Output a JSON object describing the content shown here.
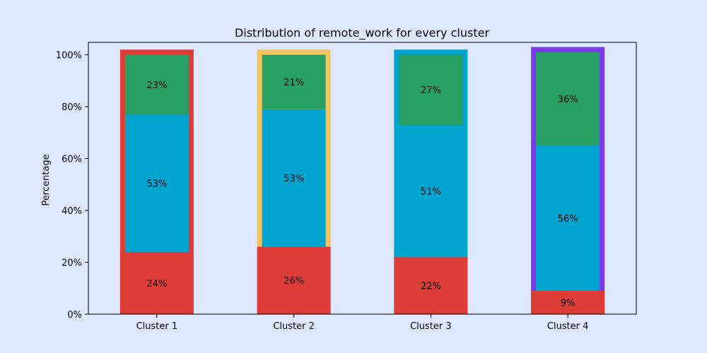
{
  "chart_data": {
    "type": "bar",
    "stacked": true,
    "title": "Distribution of remote_work for every cluster",
    "xlabel": "",
    "ylabel": "Percentage",
    "ylim": [
      0,
      100
    ],
    "yticks": [
      0,
      20,
      40,
      60,
      80,
      100
    ],
    "ytick_labels": [
      "0%",
      "20%",
      "40%",
      "60%",
      "80%",
      "100%"
    ],
    "categories": [
      "Cluster 1",
      "Cluster 2",
      "Cluster 3",
      "Cluster 4"
    ],
    "cluster_outline_colors": [
      "#dd3c37",
      "#f6c362",
      "#00a5cf",
      "#7a3ae7"
    ],
    "series": [
      {
        "color": "#dd3c37",
        "values": [
          24,
          26,
          22,
          9
        ],
        "labels": [
          "24%",
          "26%",
          "22%",
          "9%"
        ]
      },
      {
        "color": "#00a5cf",
        "values": [
          53,
          53,
          51,
          56
        ],
        "labels": [
          "53%",
          "53%",
          "51%",
          "56%"
        ]
      },
      {
        "color": "#27a064",
        "values": [
          23,
          21,
          27,
          36
        ],
        "labels": [
          "23%",
          "21%",
          "27%",
          "36%"
        ]
      }
    ],
    "legend": "none",
    "grid": false
  }
}
